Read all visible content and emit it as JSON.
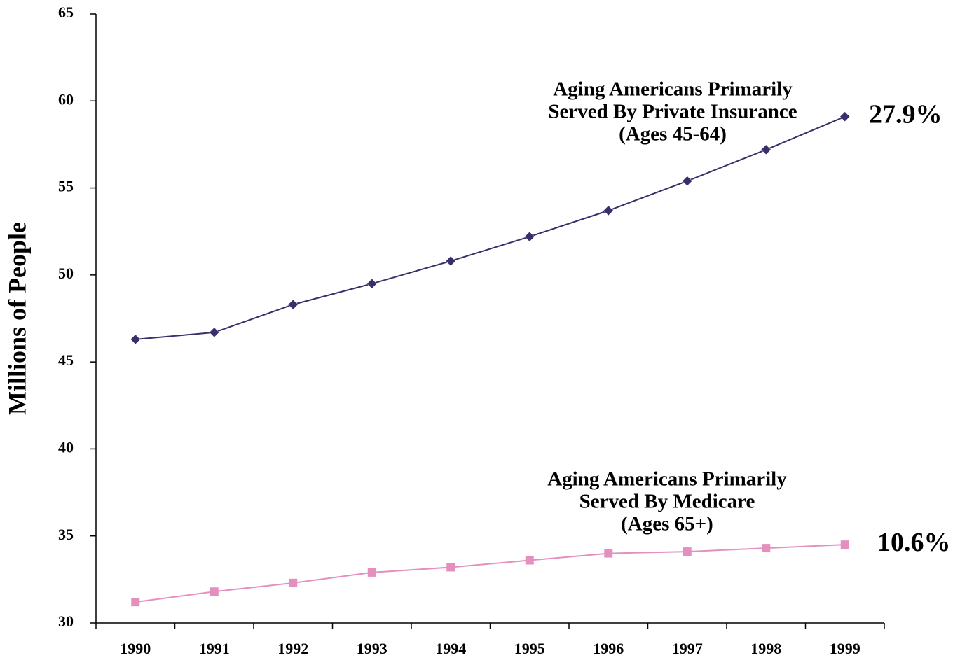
{
  "chart_data": {
    "type": "line",
    "y_label": "Millions of People",
    "categories": [
      "1990",
      "1991",
      "1992",
      "1993",
      "1994",
      "1995",
      "1996",
      "1997",
      "1998",
      "1999"
    ],
    "ylim": [
      30,
      65
    ],
    "yticks": [
      30,
      35,
      40,
      45,
      50,
      55,
      60,
      65
    ],
    "series": [
      {
        "label_lines": [
          "Aging Americans Primarily",
          "Served By Private Insurance",
          "(Ages 45-64)"
        ],
        "end_label": "27.9%",
        "color": "#3b2e6b",
        "marker": "diamond",
        "values": [
          46.3,
          46.7,
          48.3,
          49.5,
          50.8,
          52.2,
          53.7,
          55.4,
          57.2,
          59.1
        ]
      },
      {
        "label_lines": [
          "Aging Americans Primarily",
          "Served By Medicare",
          "(Ages 65+)"
        ],
        "end_label": "10.6%",
        "color": "#e58fbf",
        "marker": "square",
        "values": [
          31.2,
          31.8,
          32.3,
          32.9,
          33.2,
          33.6,
          34.0,
          34.1,
          34.3,
          34.5
        ]
      }
    ]
  }
}
